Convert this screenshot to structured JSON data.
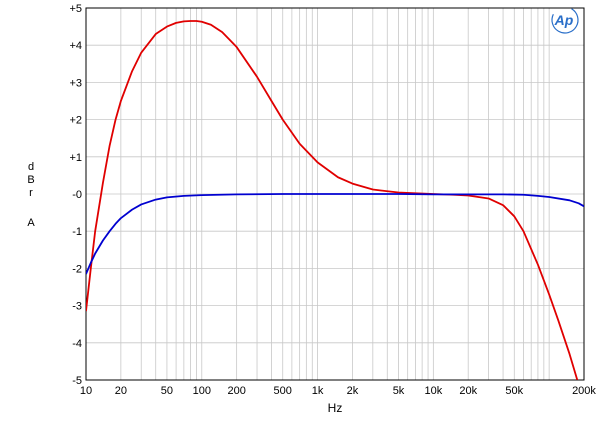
{
  "chart_data": {
    "type": "line",
    "title": "",
    "xlabel": "Hz",
    "ylabel": [
      "d",
      "B",
      "r",
      "",
      "A"
    ],
    "x_scale": "log",
    "xlim": [
      10,
      200000
    ],
    "ylim": [
      -5,
      5
    ],
    "grid": true,
    "x_tick_labels": [
      {
        "v": 10,
        "t": "10"
      },
      {
        "v": 20,
        "t": "20"
      },
      {
        "v": 50,
        "t": "50"
      },
      {
        "v": 100,
        "t": "100"
      },
      {
        "v": 200,
        "t": "200"
      },
      {
        "v": 500,
        "t": "500"
      },
      {
        "v": 1000,
        "t": "1k"
      },
      {
        "v": 2000,
        "t": "2k"
      },
      {
        "v": 5000,
        "t": "5k"
      },
      {
        "v": 10000,
        "t": "10k"
      },
      {
        "v": 20000,
        "t": "20k"
      },
      {
        "v": 50000,
        "t": "50k"
      },
      {
        "v": 200000,
        "t": "200k"
      }
    ],
    "y_tick_labels": [
      {
        "v": 5,
        "t": "+5"
      },
      {
        "v": 4,
        "t": "+4"
      },
      {
        "v": 3,
        "t": "+3"
      },
      {
        "v": 2,
        "t": "+2"
      },
      {
        "v": 1,
        "t": "+1"
      },
      {
        "v": 0,
        "t": "-0"
      },
      {
        "v": -1,
        "t": "-1"
      },
      {
        "v": -2,
        "t": "-2"
      },
      {
        "v": -3,
        "t": "-3"
      },
      {
        "v": -4,
        "t": "-4"
      },
      {
        "v": -5,
        "t": "-5"
      }
    ],
    "logo_text": "Ap",
    "series": [
      {
        "color": "#e00000",
        "points": [
          [
            10,
            -3.15
          ],
          [
            11,
            -2.0
          ],
          [
            12,
            -1.0
          ],
          [
            14,
            0.3
          ],
          [
            16,
            1.3
          ],
          [
            18,
            2.0
          ],
          [
            20,
            2.5
          ],
          [
            25,
            3.3
          ],
          [
            30,
            3.8
          ],
          [
            40,
            4.3
          ],
          [
            50,
            4.5
          ],
          [
            60,
            4.6
          ],
          [
            70,
            4.64
          ],
          [
            80,
            4.65
          ],
          [
            90,
            4.65
          ],
          [
            100,
            4.63
          ],
          [
            120,
            4.55
          ],
          [
            150,
            4.35
          ],
          [
            200,
            3.95
          ],
          [
            300,
            3.15
          ],
          [
            400,
            2.5
          ],
          [
            500,
            2.0
          ],
          [
            700,
            1.35
          ],
          [
            1000,
            0.85
          ],
          [
            1500,
            0.45
          ],
          [
            2000,
            0.28
          ],
          [
            3000,
            0.12
          ],
          [
            5000,
            0.04
          ],
          [
            7000,
            0.02
          ],
          [
            10000,
            0.0
          ],
          [
            15000,
            -0.02
          ],
          [
            20000,
            -0.04
          ],
          [
            30000,
            -0.12
          ],
          [
            40000,
            -0.3
          ],
          [
            50000,
            -0.6
          ],
          [
            60000,
            -1.0
          ],
          [
            80000,
            -1.9
          ],
          [
            100000,
            -2.7
          ],
          [
            120000,
            -3.4
          ],
          [
            150000,
            -4.3
          ],
          [
            175000,
            -5.0
          ]
        ]
      },
      {
        "color": "#0000d0",
        "points": [
          [
            10,
            -2.15
          ],
          [
            11,
            -1.85
          ],
          [
            12,
            -1.6
          ],
          [
            14,
            -1.25
          ],
          [
            16,
            -1.0
          ],
          [
            18,
            -0.8
          ],
          [
            20,
            -0.65
          ],
          [
            25,
            -0.42
          ],
          [
            30,
            -0.28
          ],
          [
            40,
            -0.15
          ],
          [
            50,
            -0.09
          ],
          [
            70,
            -0.05
          ],
          [
            100,
            -0.03
          ],
          [
            200,
            -0.01
          ],
          [
            500,
            0.0
          ],
          [
            1000,
            0.0
          ],
          [
            5000,
            0.0
          ],
          [
            10000,
            -0.01
          ],
          [
            20000,
            -0.01
          ],
          [
            40000,
            -0.01
          ],
          [
            60000,
            -0.02
          ],
          [
            80000,
            -0.05
          ],
          [
            100000,
            -0.08
          ],
          [
            150000,
            -0.17
          ],
          [
            180000,
            -0.25
          ],
          [
            200000,
            -0.33
          ]
        ]
      }
    ]
  }
}
